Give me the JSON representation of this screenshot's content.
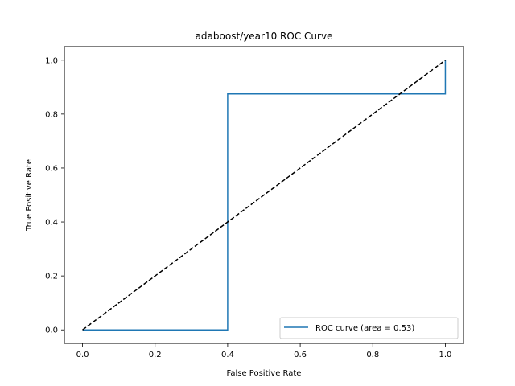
{
  "chart_data": {
    "type": "line",
    "title": "adaboost/year10 ROC Curve",
    "xlabel": "False Positive Rate",
    "ylabel": "True Positive Rate",
    "xlim": [
      -0.05,
      1.05
    ],
    "ylim": [
      -0.05,
      1.05
    ],
    "xticks": [
      0.0,
      0.2,
      0.4,
      0.6,
      0.8,
      1.0
    ],
    "yticks": [
      0.0,
      0.2,
      0.4,
      0.6,
      0.8,
      1.0
    ],
    "xtick_labels": [
      "0.0",
      "0.2",
      "0.4",
      "0.6",
      "0.8",
      "1.0"
    ],
    "ytick_labels": [
      "0.0",
      "0.2",
      "0.4",
      "0.6",
      "0.8",
      "1.0"
    ],
    "grid": false,
    "legend_position": "lower-right",
    "series": [
      {
        "name": "ROC curve (area = 0.53)",
        "color": "#1f77b4",
        "style": "solid",
        "x": [
          0.0,
          0.4,
          0.4,
          1.0,
          1.0
        ],
        "y": [
          0.0,
          0.0,
          0.875,
          0.875,
          1.0
        ]
      },
      {
        "color": "#000000",
        "style": "dashed",
        "x": [
          0.0,
          1.0
        ],
        "y": [
          0.0,
          1.0
        ]
      }
    ]
  }
}
